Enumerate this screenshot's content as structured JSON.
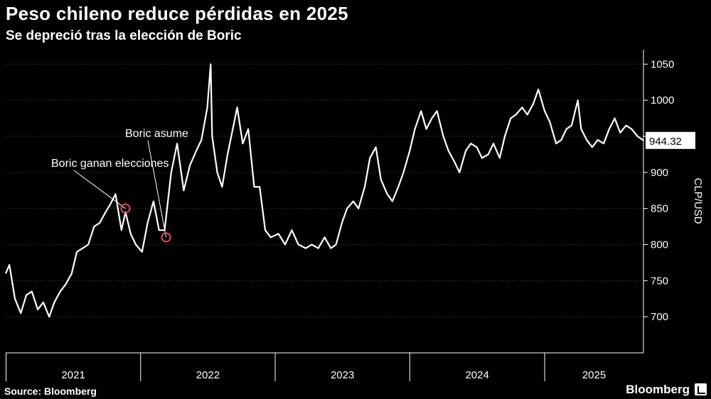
{
  "title": "Peso chileno reduce pérdidas en 2025",
  "subtitle": "Se depreció tras la elección de Boric",
  "source": "Source: Bloomberg",
  "brand": "Bloomberg",
  "brand_icon": "bloomberg-logo-icon",
  "colors": {
    "background": "#000000",
    "line": "#ffffff",
    "marker": "#e8465a",
    "grid": "#555555"
  },
  "chart_data": {
    "type": "line",
    "ylabel": "CLP/USD",
    "ylim": [
      650,
      1070
    ],
    "yticks": [
      700,
      750,
      800,
      850,
      900,
      950,
      1000,
      1050
    ],
    "ytick_labels": [
      "700",
      "750",
      "800",
      "850",
      "900",
      "950",
      "1000",
      "1050"
    ],
    "xlim": [
      "2020-12-31",
      "2025-09-26"
    ],
    "xtick_labels": [
      "2021",
      "2022",
      "2023",
      "2024",
      "2025"
    ],
    "xticks": [
      "2021-01-01",
      "2022-01-01",
      "2023-01-01",
      "2024-01-01",
      "2025-01-01"
    ],
    "grid": "horizontal dotted",
    "last_value_label": "944.32",
    "series": [
      {
        "x": [
          "2020-12-31",
          "2021-01-10",
          "2021-01-25",
          "2021-02-10",
          "2021-02-25",
          "2021-03-12",
          "2021-03-28",
          "2021-04-12",
          "2021-04-28",
          "2021-05-12",
          "2021-05-28",
          "2021-06-12",
          "2021-06-28",
          "2021-07-12",
          "2021-07-28",
          "2021-08-12",
          "2021-08-28",
          "2021-09-12",
          "2021-09-28",
          "2021-10-10",
          "2021-10-25",
          "2021-11-10",
          "2021-11-21",
          "2021-12-05",
          "2021-12-19",
          "2022-01-05",
          "2022-01-20",
          "2022-02-05",
          "2022-02-20",
          "2022-03-07",
          "2022-03-25",
          "2022-04-10",
          "2022-04-28",
          "2022-05-15",
          "2022-06-01",
          "2022-06-15",
          "2022-07-01",
          "2022-07-10",
          "2022-07-14",
          "2022-07-28",
          "2022-08-10",
          "2022-08-25",
          "2022-09-08",
          "2022-09-20",
          "2022-10-05",
          "2022-10-20",
          "2022-11-05",
          "2022-11-20",
          "2022-12-05",
          "2022-12-20",
          "2023-01-10",
          "2023-01-28",
          "2023-02-15",
          "2023-03-05",
          "2023-03-25",
          "2023-04-10",
          "2023-04-28",
          "2023-05-15",
          "2023-06-01",
          "2023-06-15",
          "2023-07-01",
          "2023-07-15",
          "2023-08-01",
          "2023-08-15",
          "2023-09-01",
          "2023-09-15",
          "2023-10-01",
          "2023-10-15",
          "2023-11-01",
          "2023-11-15",
          "2023-12-01",
          "2023-12-15",
          "2024-01-01",
          "2024-01-15",
          "2024-02-01",
          "2024-02-15",
          "2024-03-01",
          "2024-03-15",
          "2024-04-01",
          "2024-04-15",
          "2024-05-01",
          "2024-05-15",
          "2024-06-01",
          "2024-06-15",
          "2024-07-01",
          "2024-07-15",
          "2024-08-01",
          "2024-08-15",
          "2024-09-01",
          "2024-09-15",
          "2024-10-01",
          "2024-10-15",
          "2024-11-01",
          "2024-11-15",
          "2024-12-01",
          "2024-12-15",
          "2025-01-01",
          "2025-01-15",
          "2025-02-01",
          "2025-02-15",
          "2025-03-01",
          "2025-03-15",
          "2025-04-01",
          "2025-04-10",
          "2025-04-25",
          "2025-05-10",
          "2025-05-25",
          "2025-06-10",
          "2025-06-25",
          "2025-07-10",
          "2025-07-25",
          "2025-08-10",
          "2025-08-25",
          "2025-09-10",
          "2025-09-26"
        ],
        "values": [
          760,
          772,
          725,
          705,
          730,
          735,
          710,
          720,
          700,
          720,
          735,
          745,
          760,
          790,
          795,
          800,
          825,
          830,
          845,
          855,
          870,
          820,
          845,
          815,
          800,
          790,
          830,
          860,
          820,
          820,
          900,
          940,
          875,
          910,
          930,
          945,
          990,
          1050,
          950,
          900,
          880,
          925,
          960,
          990,
          940,
          960,
          880,
          880,
          820,
          810,
          815,
          800,
          820,
          800,
          795,
          800,
          795,
          810,
          795,
          800,
          830,
          850,
          860,
          850,
          880,
          920,
          935,
          890,
          870,
          860,
          880,
          900,
          930,
          960,
          985,
          960,
          975,
          985,
          950,
          930,
          915,
          900,
          930,
          940,
          935,
          920,
          925,
          940,
          920,
          950,
          975,
          980,
          990,
          980,
          995,
          1015,
          985,
          970,
          940,
          945,
          960,
          965,
          1000,
          960,
          945,
          935,
          945,
          940,
          960,
          975,
          955,
          965,
          960,
          950,
          944.32
        ]
      }
    ],
    "annotations": [
      {
        "label": "Boric ganan elecciones",
        "x": "2021-11-21",
        "y": 850
      },
      {
        "label": "Boric asume",
        "x": "2022-03-11",
        "y": 810
      }
    ]
  }
}
